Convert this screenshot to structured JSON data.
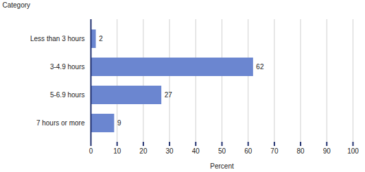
{
  "chart_data": {
    "type": "bar",
    "orientation": "horizontal",
    "ylabel": "Category",
    "xlabel": "Percent",
    "categories": [
      "Less than 3 hours",
      "3-4.9 hours",
      "5-6.9 hours",
      "7 hours or more"
    ],
    "values": [
      2,
      62,
      27,
      9
    ],
    "color": "#6b86d0",
    "xlim": [
      0,
      100
    ],
    "xticks": [
      0,
      10,
      20,
      30,
      40,
      50,
      60,
      70,
      80,
      90,
      100
    ],
    "grid": true,
    "data_labels": true
  }
}
